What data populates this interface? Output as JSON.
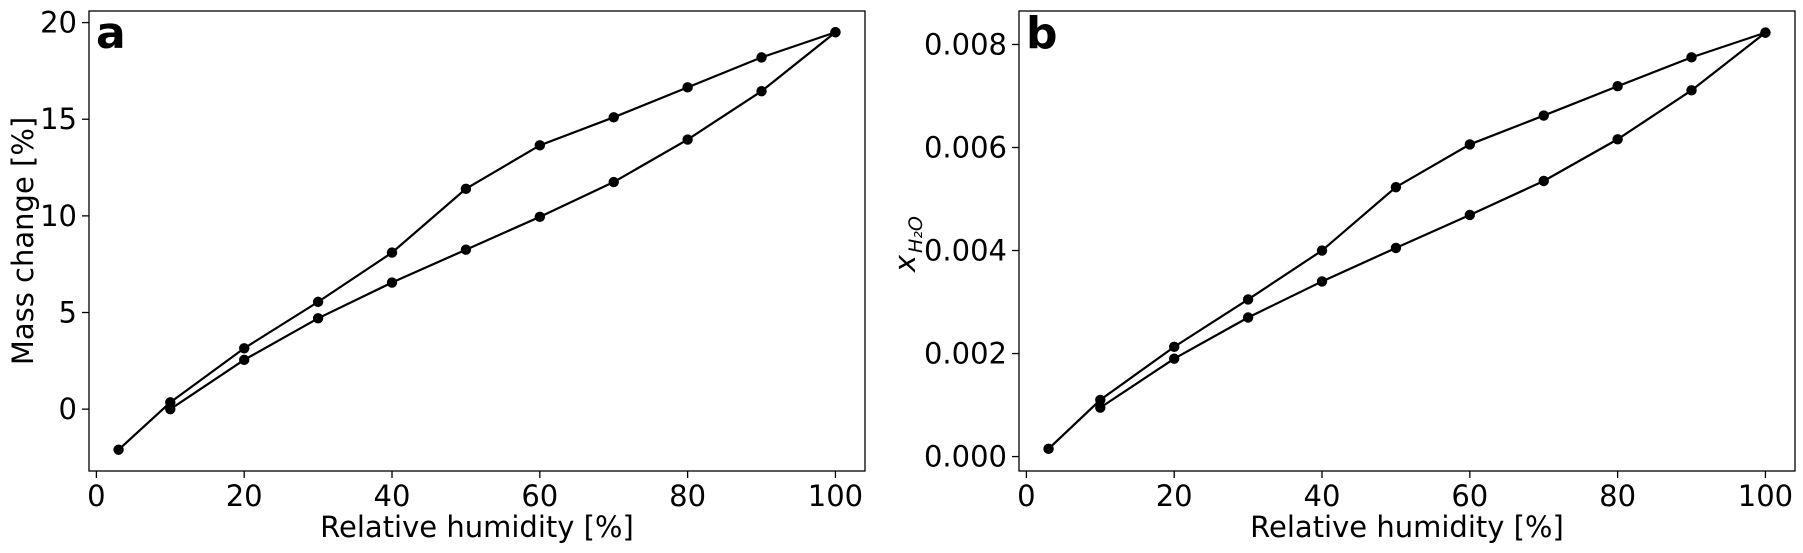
{
  "chart_data": [
    {
      "type": "line",
      "panel_label": "a",
      "xlabel": "Relative humidity [%]",
      "ylabel": "Mass change [%]",
      "xlim": [
        -1,
        104
      ],
      "ylim": [
        -3.2,
        20.6
      ],
      "xticks": [
        0,
        20,
        40,
        60,
        80,
        100
      ],
      "yticks": [
        0,
        5,
        10,
        15,
        20
      ],
      "xtick_labels": [
        "0",
        "20",
        "40",
        "60",
        "80",
        "100"
      ],
      "ytick_labels": [
        "0",
        "5",
        "10",
        "15",
        "20"
      ],
      "grid": false,
      "series": [
        {
          "x": [
            3,
            10,
            20,
            30,
            40,
            50,
            60,
            70,
            80,
            90,
            100
          ],
          "y": [
            -2.1,
            0.35,
            3.15,
            5.55,
            8.1,
            11.4,
            13.65,
            15.1,
            16.65,
            18.2,
            19.5
          ]
        },
        {
          "x": [
            10,
            20,
            30,
            40,
            50,
            60,
            70,
            80,
            90,
            100
          ],
          "y": [
            0.0,
            2.55,
            4.7,
            6.55,
            8.25,
            9.95,
            11.75,
            13.95,
            16.45,
            19.5
          ]
        }
      ]
    },
    {
      "type": "line",
      "panel_label": "b",
      "xlabel": "Relative humidity [%]",
      "ylabel": "x_H2O",
      "ylabel_main": "x",
      "ylabel_sub": "H₂O",
      "xlim": [
        -1,
        104
      ],
      "ylim": [
        -0.00028,
        0.00865
      ],
      "xticks": [
        0,
        20,
        40,
        60,
        80,
        100
      ],
      "yticks": [
        0.0,
        0.002,
        0.004,
        0.006,
        0.008
      ],
      "xtick_labels": [
        "0",
        "20",
        "40",
        "60",
        "80",
        "100"
      ],
      "ytick_labels": [
        "0.000",
        "0.002",
        "0.004",
        "0.006",
        "0.008"
      ],
      "grid": false,
      "series": [
        {
          "x": [
            3,
            10,
            20,
            30,
            40,
            50,
            60,
            70,
            80,
            90,
            100
          ],
          "y": [
            0.00015,
            0.0011,
            0.00213,
            0.00305,
            0.004,
            0.00523,
            0.00606,
            0.00662,
            0.00719,
            0.00775,
            0.00823
          ]
        },
        {
          "x": [
            10,
            20,
            30,
            40,
            50,
            60,
            70,
            80,
            90,
            100
          ],
          "y": [
            0.00095,
            0.0019,
            0.0027,
            0.0034,
            0.00405,
            0.00469,
            0.00535,
            0.00616,
            0.00711,
            0.00823
          ]
        }
      ]
    }
  ]
}
